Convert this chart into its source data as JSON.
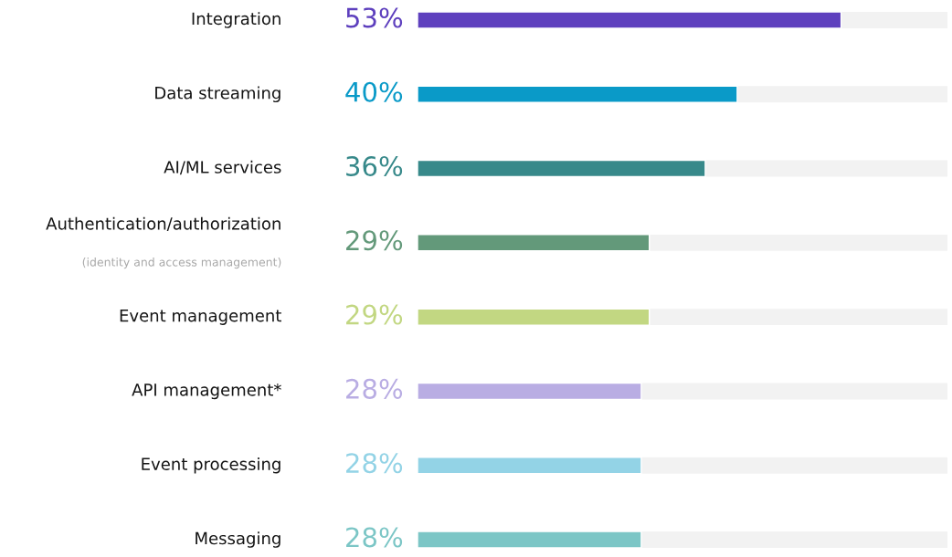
{
  "chart_data": {
    "type": "bar",
    "orientation": "horizontal",
    "categories": [
      "Integration",
      "Data streaming",
      "AI/ML services",
      "Authentication/authorization\n(identity and access management)",
      "Event management",
      "API management*",
      "Event processing",
      "Messaging"
    ],
    "values": [
      53,
      40,
      36,
      29,
      29,
      28,
      28,
      28
    ],
    "colors": [
      "#5e40be",
      "#0a9ac8",
      "#37898a",
      "#63997a",
      "#c2d782",
      "#b9ade3",
      "#93d3e6",
      "#7cc6c6"
    ],
    "value_labels": [
      "53%",
      "40%",
      "36%",
      "29%",
      "29%",
      "28%",
      "28%",
      "28%"
    ],
    "xlim": [
      0,
      66.3
    ],
    "tick_labels": "y"
  }
}
